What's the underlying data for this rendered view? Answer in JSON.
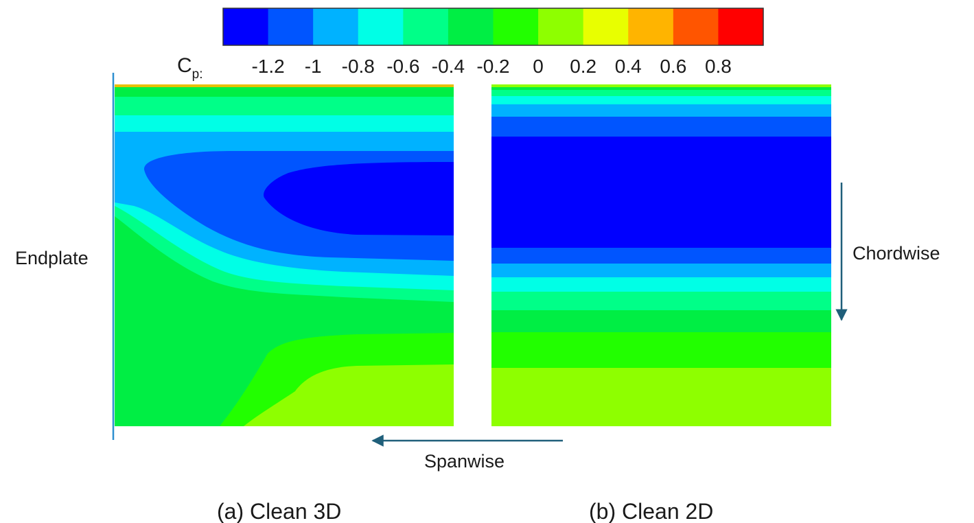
{
  "colorbar": {
    "label_main": "C",
    "label_sub": "p:",
    "colors": [
      "#0000ff",
      "#0055ff",
      "#00b2ff",
      "#00ffe6",
      "#00ff88",
      "#00ee44",
      "#22ff00",
      "#8eff00",
      "#e8ff00",
      "#ffb400",
      "#ff5500",
      "#ff0000"
    ],
    "ticks": [
      "-1.2",
      "-1",
      "-0.8",
      "-0.6",
      "-0.4",
      "-0.2",
      "0",
      "0.2",
      "0.4",
      "0.6",
      "0.8"
    ]
  },
  "labels": {
    "endplate": "Endplate",
    "chordwise": "Chordwise",
    "spanwise": "Spanwise"
  },
  "panels": [
    {
      "id": "clean-3d",
      "caption": "(a) Clean 3D"
    },
    {
      "id": "clean-2d",
      "caption": "(b) Clean 2D"
    }
  ],
  "colors": {
    "arrow": "#1f5f7a",
    "endplate_line": "#2e8fd0"
  }
}
